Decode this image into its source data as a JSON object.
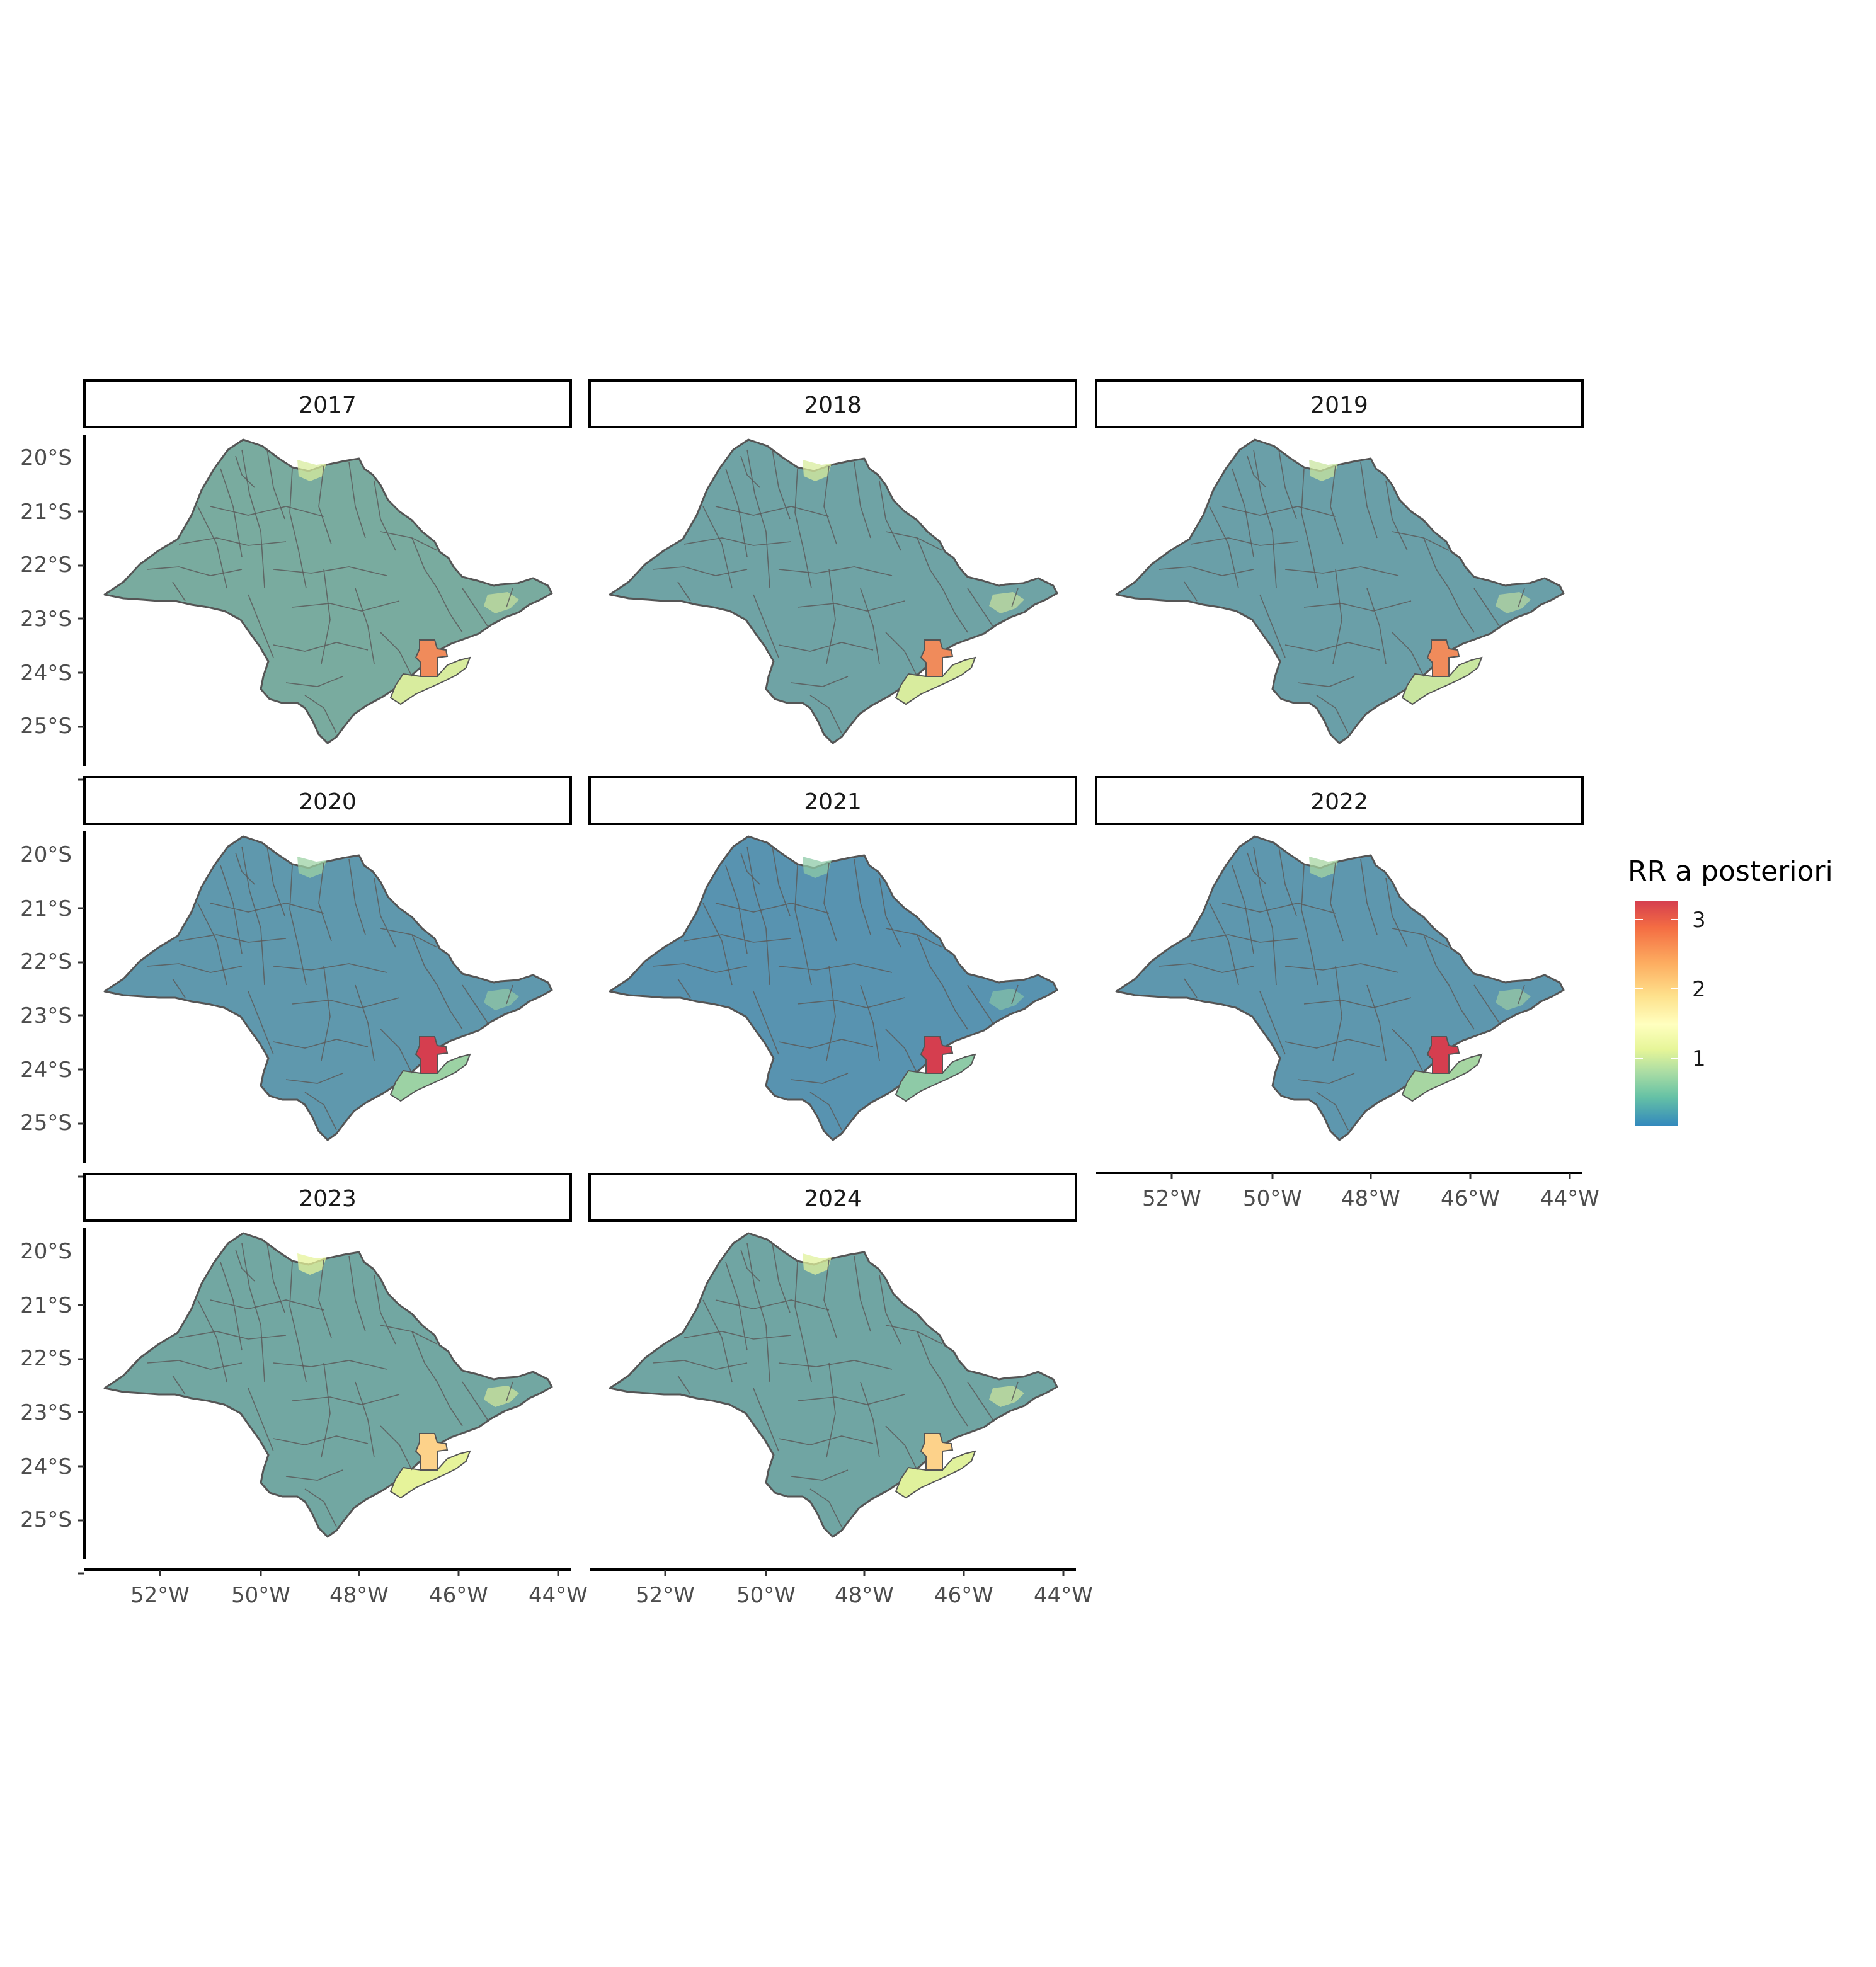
{
  "figure": {
    "panels": [
      {
        "year": "2017",
        "base": "#79ab9f",
        "capital": "#f08b5b",
        "coast": "#d8ec9e"
      },
      {
        "year": "2018",
        "base": "#6fa3a5",
        "capital": "#f08b5b",
        "coast": "#d8ec9e"
      },
      {
        "year": "2019",
        "base": "#6a9fa8",
        "capital": "#f08b5b",
        "coast": "#c9e6a0"
      },
      {
        "year": "2020",
        "base": "#5f98ad",
        "capital": "#d53e4f",
        "coast": "#9cd2a4"
      },
      {
        "year": "2021",
        "base": "#5893b0",
        "capital": "#d53e4f",
        "coast": "#8ecaa7"
      },
      {
        "year": "2022",
        "base": "#5e97ae",
        "capital": "#d53e4f",
        "coast": "#a7d6a2"
      },
      {
        "year": "2023",
        "base": "#72a7a2",
        "capital": "#fdd28a",
        "coast": "#e6f39a"
      },
      {
        "year": "2024",
        "base": "#70a5a3",
        "capital": "#fdd28a",
        "coast": "#e0f19c"
      }
    ],
    "lat_ticks": [
      "20°S",
      "21°S",
      "22°S",
      "23°S",
      "24°S",
      "25°S"
    ],
    "lon_ticks": [
      "52°W",
      "50°W",
      "48°W",
      "46°W",
      "44°W"
    ],
    "legend": {
      "title": "RR a posteriori",
      "labels": [
        "3",
        "2",
        "1"
      ],
      "colors": [
        "#d53e4f",
        "#f46d43",
        "#fdae61",
        "#fee08b",
        "#ffffbf",
        "#e6f598",
        "#abdda4",
        "#66c2a5",
        "#3288bd"
      ]
    }
  }
}
